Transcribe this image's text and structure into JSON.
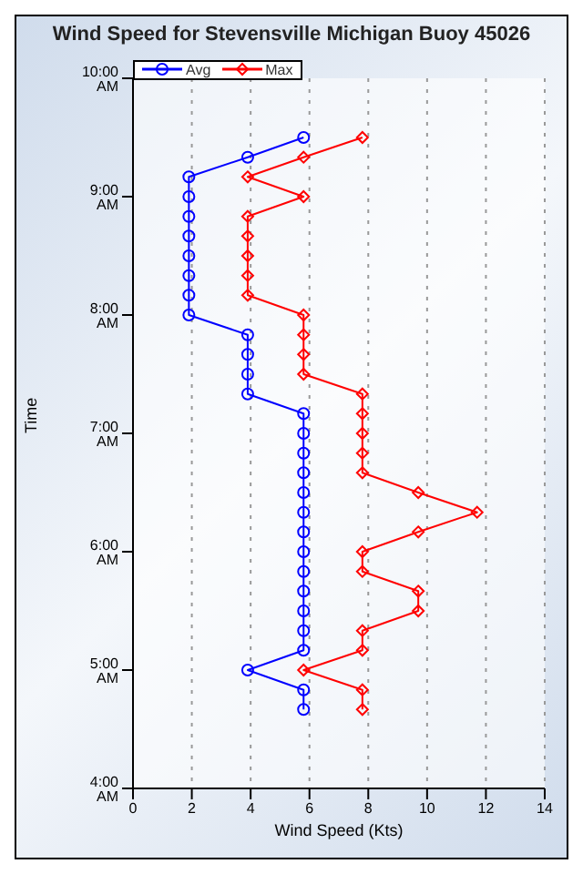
{
  "chart_data": {
    "type": "line",
    "title": "Wind Speed for Stevensville Michigan Buoy 45026",
    "xlabel": "Wind Speed (Kts)",
    "ylabel": "Time",
    "xlim": [
      0,
      14
    ],
    "xticks": [
      0,
      2,
      4,
      6,
      8,
      10,
      12,
      14
    ],
    "ylim": [
      4,
      10
    ],
    "yticks": [
      {
        "value": 4,
        "label": "4:00 AM"
      },
      {
        "value": 5,
        "label": "5:00 AM"
      },
      {
        "value": 6,
        "label": "6:00 AM"
      },
      {
        "value": 7,
        "label": "7:00 AM"
      },
      {
        "value": 8,
        "label": "8:00 AM"
      },
      {
        "value": 9,
        "label": "9:00 AM"
      },
      {
        "value": 10,
        "label": "10:00 AM"
      }
    ],
    "grid": "x",
    "legend": "top left",
    "series": [
      {
        "name": "Avg",
        "color": "#0000ff",
        "marker": "circle",
        "x": [
          5.8,
          5.8,
          3.9,
          5.8,
          5.8,
          5.8,
          5.8,
          5.8,
          5.8,
          5.8,
          5.8,
          5.8,
          5.8,
          5.8,
          5.8,
          5.8,
          3.9,
          3.9,
          3.9,
          3.9,
          1.9,
          1.9,
          1.9,
          1.9,
          1.9,
          1.9,
          1.9,
          1.9,
          3.9,
          5.8
        ],
        "values": [
          4.667,
          4.833,
          5,
          5.167,
          5.333,
          5.5,
          5.667,
          5.833,
          6,
          6.167,
          6.333,
          6.5,
          6.667,
          6.833,
          7,
          7.167,
          7.333,
          7.5,
          7.667,
          7.833,
          8,
          8.167,
          8.333,
          8.5,
          8.667,
          8.833,
          9,
          9.167,
          9.333,
          9.5
        ]
      },
      {
        "name": "Max",
        "color": "#ff0000",
        "marker": "diamond",
        "x": [
          7.8,
          7.8,
          5.8,
          7.8,
          7.8,
          9.7,
          9.7,
          7.8,
          7.8,
          9.7,
          11.7,
          9.7,
          7.8,
          7.8,
          7.8,
          7.8,
          7.8,
          5.8,
          5.8,
          5.8,
          5.8,
          3.9,
          3.9,
          3.9,
          3.9,
          3.9,
          5.8,
          3.9,
          5.8,
          7.8
        ],
        "values": [
          4.667,
          4.833,
          5,
          5.167,
          5.333,
          5.5,
          5.667,
          5.833,
          6,
          6.167,
          6.333,
          6.5,
          6.667,
          6.833,
          7,
          7.167,
          7.333,
          7.5,
          7.667,
          7.833,
          8,
          8.167,
          8.333,
          8.5,
          8.667,
          8.833,
          9,
          9.167,
          9.333,
          9.5
        ]
      }
    ]
  }
}
